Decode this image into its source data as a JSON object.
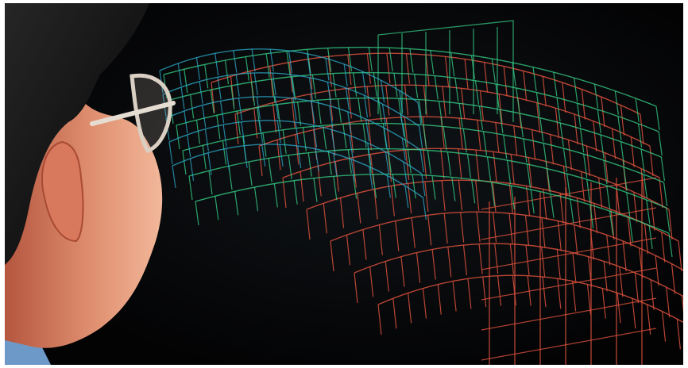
{
  "photo": {
    "colors": {
      "background": "#050507",
      "wire_cyan": "#2fb6d8",
      "wire_green": "#37d48a",
      "wire_red": "#d8503c",
      "skin": "#d98a6c",
      "hair": "#151515",
      "glasses_frame": "#d9cfc3",
      "shirt": "#6d99c9"
    },
    "subjects": [
      "person-with-glasses",
      "wireframe-surface-display"
    ]
  }
}
